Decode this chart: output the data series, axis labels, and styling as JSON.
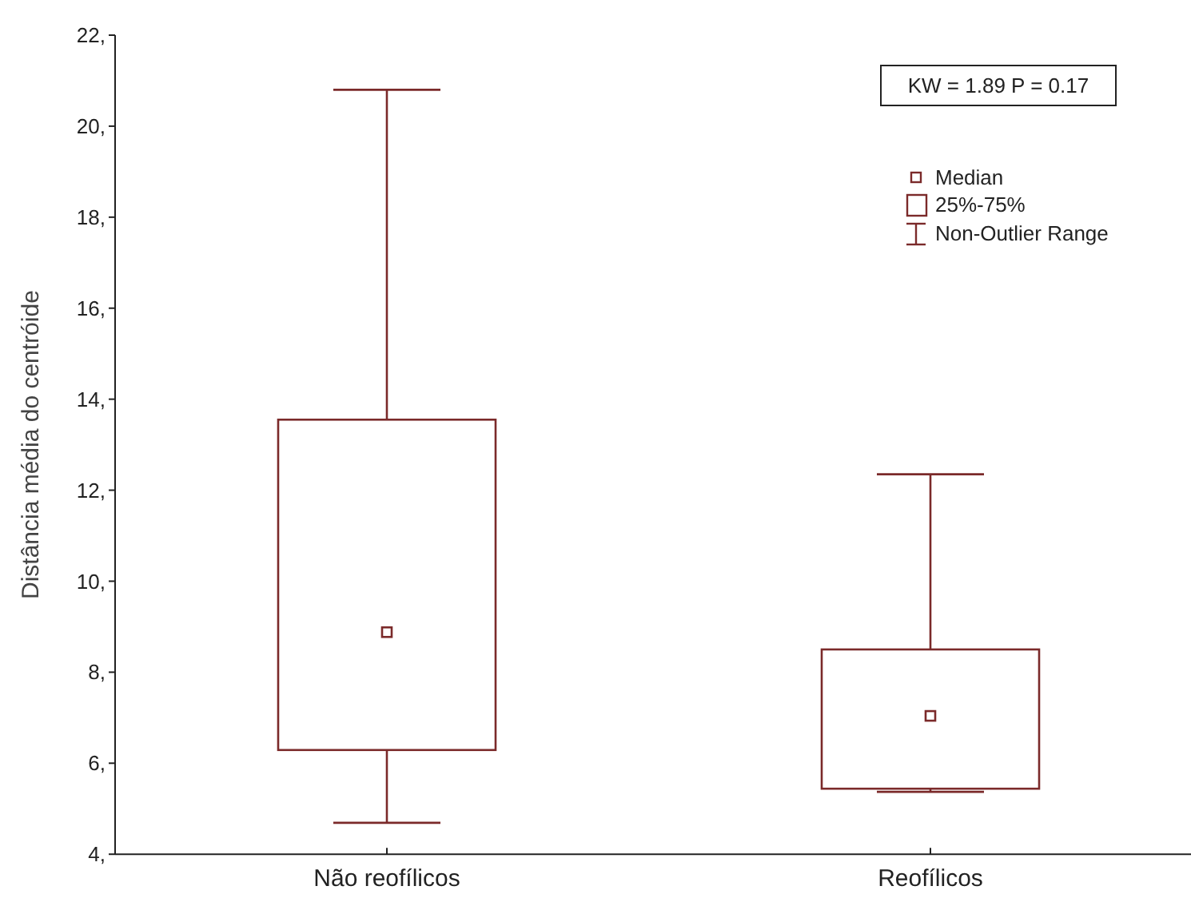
{
  "chart_data": {
    "type": "box",
    "ylabel": "Distância média do centróide",
    "categories": [
      "Não reofílicos",
      "Reofílicos"
    ],
    "color": "#7b2a2a",
    "boxes": [
      {
        "low": 4.69,
        "q1": 6.29,
        "median": 8.88,
        "q3": 13.55,
        "high": 20.8
      },
      {
        "low": 5.37,
        "q1": 5.44,
        "median": 7.04,
        "q3": 8.5,
        "high": 12.35
      }
    ],
    "ylim": [
      4,
      22
    ],
    "yticks": [
      {
        "value": 4,
        "label": "4,"
      },
      {
        "value": 6,
        "label": "6,"
      },
      {
        "value": 8,
        "label": "8,"
      },
      {
        "value": 10,
        "label": "10,"
      },
      {
        "value": 12,
        "label": "12,"
      },
      {
        "value": 14,
        "label": "14,"
      },
      {
        "value": 16,
        "label": "16,"
      },
      {
        "value": 18,
        "label": "18,"
      },
      {
        "value": 20,
        "label": "20,"
      },
      {
        "value": 22,
        "label": "22,"
      }
    ],
    "annotations": [
      "KW = 1.89 P = 0.17",
      "Median",
      "25%-75%",
      "Non-Outlier Range"
    ]
  }
}
